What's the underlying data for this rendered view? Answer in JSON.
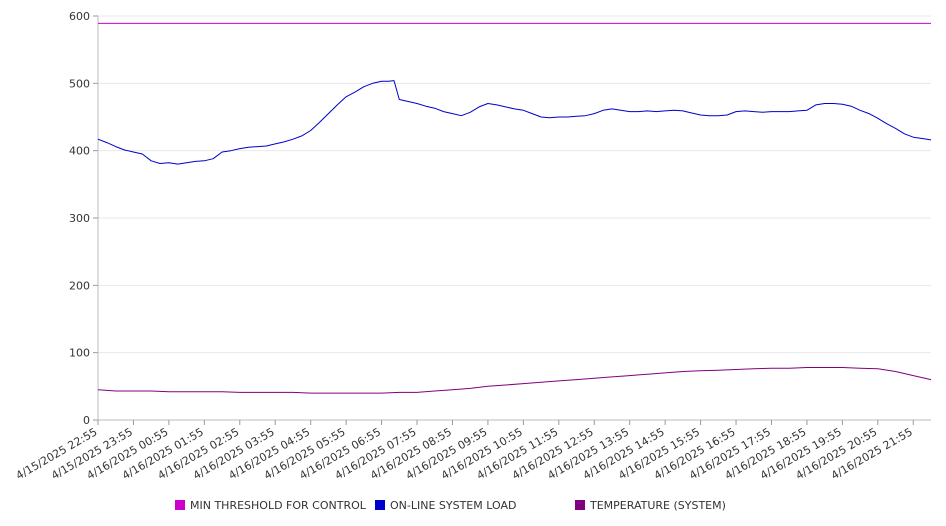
{
  "chart_data": {
    "type": "line",
    "title": "",
    "xlabel": "",
    "ylabel": "",
    "ylim": [
      0,
      600
    ],
    "yticks": [
      0,
      100,
      200,
      300,
      400,
      500,
      600
    ],
    "x_tick_labels": [
      "4/15/2025 22:55",
      "4/15/2025 23:55",
      "4/16/2025 00:55",
      "4/16/2025 01:55",
      "4/16/2025 02:55",
      "4/16/2025 03:55",
      "4/16/2025 04:55",
      "4/16/2025 05:55",
      "4/16/2025 06:55",
      "4/16/2025 07:55",
      "4/16/2025 08:55",
      "4/16/2025 09:55",
      "4/16/2025 10:55",
      "4/16/2025 11:55",
      "4/16/2025 12:55",
      "4/16/2025 13:55",
      "4/16/2025 14:55",
      "4/16/2025 15:55",
      "4/16/2025 16:55",
      "4/16/2025 17:55",
      "4/16/2025 18:55",
      "4/16/2025 19:55",
      "4/16/2025 20:55",
      "4/16/2025 21:55"
    ],
    "x_range_hours": [
      0,
      23.5
    ],
    "grid": true,
    "legend_position": "bottom",
    "series": [
      {
        "name": "MIN THRESHOLD FOR CONTROL",
        "color": "#cc00cc",
        "x_hours": [
          0,
          23.5
        ],
        "values": [
          589,
          589
        ]
      },
      {
        "name": "ON-LINE SYSTEM LOAD",
        "color": "#0000cc",
        "x_hours": [
          0,
          0.25,
          0.5,
          0.75,
          1.0,
          1.25,
          1.5,
          1.75,
          2.0,
          2.25,
          2.5,
          2.75,
          3.0,
          3.25,
          3.5,
          3.75,
          4.0,
          4.25,
          4.5,
          4.75,
          5.0,
          5.25,
          5.5,
          5.75,
          6.0,
          6.25,
          6.5,
          6.75,
          7.0,
          7.25,
          7.5,
          7.75,
          8.0,
          8.2,
          8.35,
          8.5,
          8.75,
          9.0,
          9.25,
          9.5,
          9.75,
          10.0,
          10.25,
          10.5,
          10.75,
          11.0,
          11.25,
          11.5,
          11.75,
          12.0,
          12.25,
          12.5,
          12.75,
          13.0,
          13.25,
          13.5,
          13.75,
          14.0,
          14.25,
          14.5,
          14.75,
          15.0,
          15.25,
          15.5,
          15.75,
          16.0,
          16.25,
          16.5,
          16.75,
          17.0,
          17.25,
          17.5,
          17.75,
          18.0,
          18.25,
          18.5,
          18.75,
          19.0,
          19.25,
          19.5,
          19.75,
          20.0,
          20.25,
          20.5,
          20.75,
          21.0,
          21.25,
          21.5,
          21.75,
          22.0,
          22.25,
          22.5,
          22.75,
          23.0,
          23.25,
          23.5
        ],
        "values": [
          417,
          412,
          406,
          401,
          398,
          395,
          385,
          381,
          382,
          380,
          382,
          384,
          385,
          388,
          398,
          400,
          403,
          405,
          406,
          407,
          410,
          413,
          417,
          422,
          430,
          442,
          455,
          468,
          480,
          487,
          495,
          500,
          503,
          503,
          504,
          476,
          473,
          470,
          466,
          463,
          458,
          455,
          452,
          457,
          465,
          470,
          468,
          465,
          462,
          460,
          455,
          450,
          449,
          450,
          450,
          451,
          452,
          455,
          460,
          462,
          460,
          458,
          458,
          459,
          458,
          459,
          460,
          459,
          456,
          453,
          452,
          452,
          453,
          458,
          459,
          458,
          457,
          458,
          458,
          458,
          459,
          460,
          468,
          470,
          470,
          469,
          466,
          460,
          455,
          448,
          440,
          433,
          425,
          420,
          418,
          416
        ]
      },
      {
        "name": "TEMPERATURE (SYSTEM)",
        "color": "#800080",
        "x_hours": [
          0,
          0.5,
          1.0,
          1.5,
          2.0,
          2.5,
          3.0,
          3.5,
          4.0,
          4.5,
          5.0,
          5.5,
          6.0,
          6.5,
          7.0,
          7.5,
          8.0,
          8.5,
          9.0,
          9.5,
          10.0,
          10.5,
          11.0,
          11.5,
          12.0,
          12.5,
          13.0,
          13.5,
          14.0,
          14.5,
          15.0,
          15.5,
          16.0,
          16.5,
          17.0,
          17.5,
          18.0,
          18.5,
          19.0,
          19.5,
          20.0,
          20.5,
          21.0,
          21.5,
          22.0,
          22.5,
          23.0,
          23.5
        ],
        "values": [
          45,
          43,
          43,
          43,
          42,
          42,
          42,
          42,
          41,
          41,
          41,
          41,
          40,
          40,
          40,
          40,
          40,
          41,
          41,
          43,
          45,
          47,
          50,
          52,
          54,
          56,
          58,
          60,
          62,
          64,
          66,
          68,
          70,
          72,
          73,
          74,
          75,
          76,
          77,
          77,
          78,
          78,
          78,
          77,
          76,
          72,
          66,
          60
        ]
      }
    ]
  }
}
